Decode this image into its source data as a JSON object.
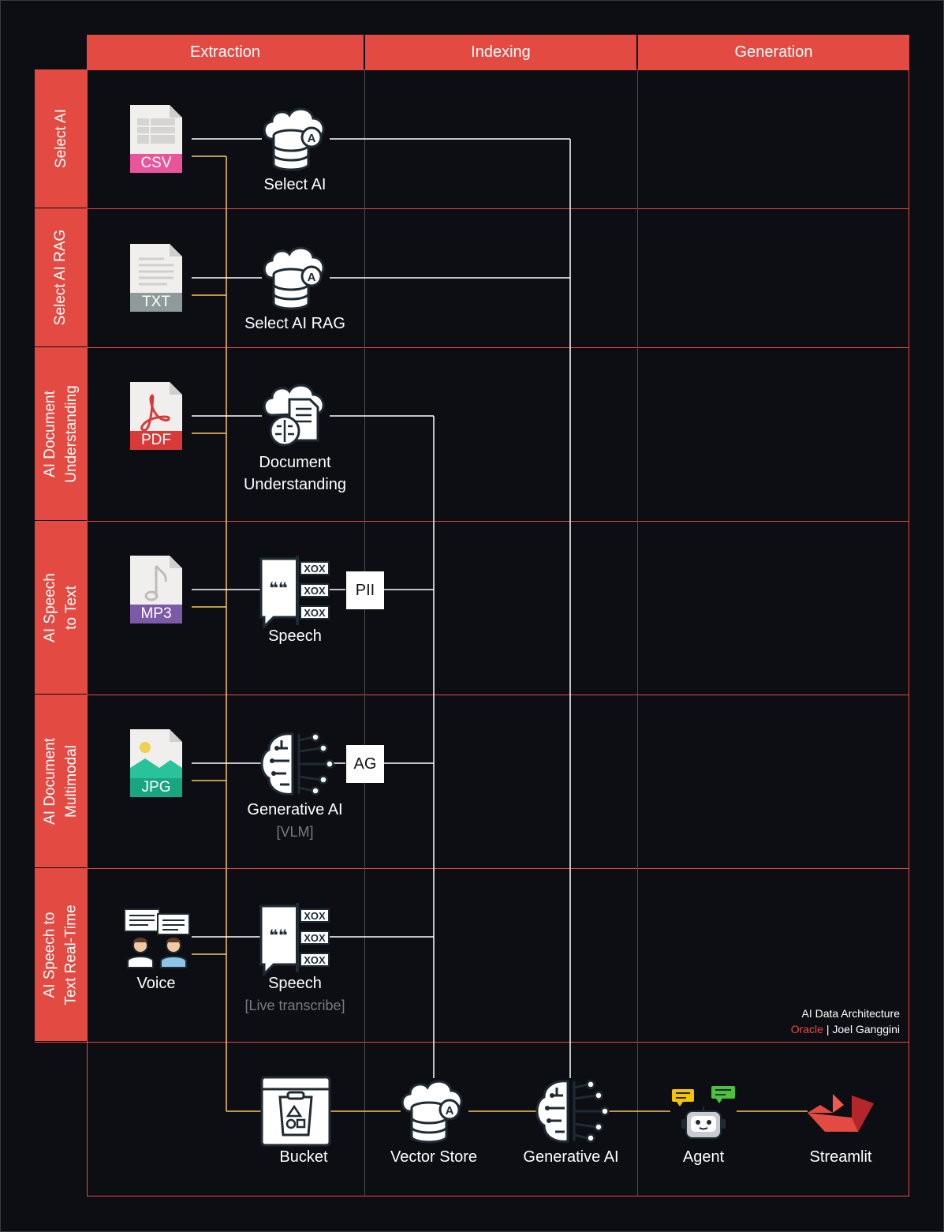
{
  "columns": [
    "Extraction",
    "Indexing",
    "Generation"
  ],
  "rows": [
    {
      "header": "Select AI",
      "file_type": "CSV",
      "file_color": "#e9559b",
      "service_icon": "database-cloud-icon",
      "service_label": "Select AI",
      "service_sub": ""
    },
    {
      "header": "Select AI RAG",
      "file_type": "TXT",
      "file_color": "#8f9a9a",
      "service_icon": "database-cloud-icon",
      "service_label": "Select AI RAG",
      "service_sub": ""
    },
    {
      "header": "AI Document\nUnderstanding",
      "file_type": "PDF",
      "file_color": "#d83a3a",
      "service_icon": "document-brain-cloud-icon",
      "service_label": "Document\nUnderstanding",
      "service_sub": ""
    },
    {
      "header": "AI Speech\nto Text",
      "file_type": "MP3",
      "file_color": "#7d5aa8",
      "service_icon": "speech-icon",
      "service_label": "Speech",
      "service_sub": "",
      "badge": "PII"
    },
    {
      "header": "AI Document\nMultimodal",
      "file_type": "JPG",
      "file_color": "#1aa581",
      "service_icon": "brain-circuit-icon",
      "service_label": "Generative AI",
      "service_sub": "[VLM]",
      "badge": "AG"
    },
    {
      "header": "AI Speech to\nText Real-Time",
      "file_type": "",
      "source_label": "Voice",
      "service_icon": "speech-icon",
      "service_label": "Speech",
      "service_sub": "[Live transcribe]"
    }
  ],
  "pipeline": [
    {
      "label": "Bucket",
      "icon": "bucket-icon"
    },
    {
      "label": "Vector Store",
      "icon": "database-cloud-icon"
    },
    {
      "label": "Generative AI",
      "icon": "brain-circuit-icon"
    },
    {
      "label": "Agent",
      "icon": "robot-icon"
    },
    {
      "label": "Streamlit",
      "icon": "streamlit-icon"
    }
  ],
  "credit": {
    "title": "AI Data Architecture",
    "org": "Oracle",
    "separator": "|",
    "author": "Joel Ganggini"
  },
  "colors": {
    "accent": "#e24a42",
    "yellow_line": "#f5c75a",
    "white_line": "#ffffff",
    "grid": "#e24a42",
    "background": "#0d0e14"
  }
}
